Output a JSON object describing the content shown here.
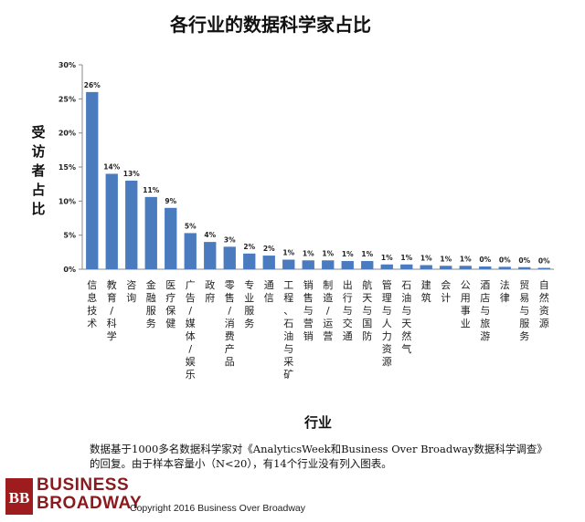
{
  "chart_data": {
    "type": "bar",
    "title": "各行业的数据科学家占比",
    "xlabel": "行业",
    "ylabel": "受访者占比",
    "ylim": [
      0,
      30
    ],
    "yticks": [
      "0%",
      "5%",
      "10%",
      "15%",
      "20%",
      "25%",
      "30%"
    ],
    "grid": false,
    "legend": "none",
    "categories": [
      "信息技术",
      "教育/科学",
      "咨询",
      "金融服务",
      "医疗保健",
      "广告/媒体/娱乐",
      "政府",
      "零售/消费产品",
      "专业服务",
      "通信",
      "工程、石油与采矿",
      "销售与营销",
      "制造/运营",
      "出行与交通",
      "航天与国防",
      "管理与人力资源",
      "石油与天然气",
      "建筑",
      "会计",
      "公用事业",
      "酒店与旅游",
      "法律",
      "贸易与服务",
      "自然资源"
    ],
    "values": [
      26,
      14,
      13,
      10.6,
      9,
      5.3,
      4,
      3.3,
      2.3,
      2,
      1.4,
      1.3,
      1.3,
      1.2,
      1.2,
      0.7,
      0.7,
      0.6,
      0.5,
      0.5,
      0.4,
      0.35,
      0.3,
      0.2
    ],
    "data_labels": [
      "26%",
      "14%",
      "13%",
      "11%",
      "9%",
      "5%",
      "4%",
      "3%",
      "2%",
      "2%",
      "1%",
      "1%",
      "1%",
      "1%",
      "1%",
      "1%",
      "1%",
      "1%",
      "1%",
      "1%",
      "0%",
      "0%",
      "0%",
      "0%"
    ],
    "bar_color": "#4a7bbf"
  },
  "footnote": {
    "line1": "数据基于1000多名数据科学家对《AnalyticsWeek和Business Over Broadway数据科学调查》",
    "line2": "的回复。由于样本容量小（N<20），有14个行业没有列入图表。"
  },
  "logo": {
    "mark": "BB",
    "line1": "BUSINESS",
    "line2": "BROADWAY"
  },
  "copyright": "Copyright 2016 Business Over Broadway"
}
